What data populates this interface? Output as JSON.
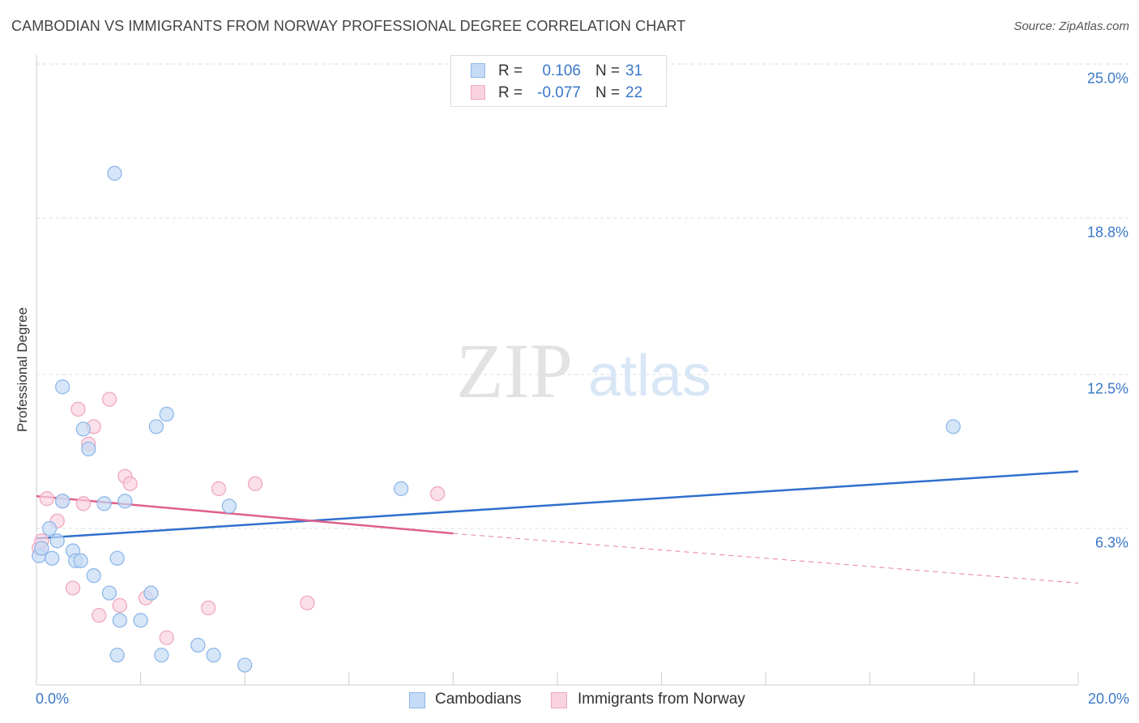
{
  "chart_data": {
    "type": "scatter",
    "title": "CAMBODIAN VS IMMIGRANTS FROM NORWAY PROFESSIONAL DEGREE CORRELATION CHART",
    "source": "Source: ZipAtlas.com",
    "ylabel": "Professional Degree",
    "xlabel": "",
    "xlim": [
      0,
      20
    ],
    "ylim": [
      0,
      25
    ],
    "x_tick_labels": [
      "0.0%",
      "20.0%"
    ],
    "y_ticks": [
      {
        "value": 25.0,
        "label": "25.0%"
      },
      {
        "value": 18.8,
        "label": "18.8%"
      },
      {
        "value": 12.5,
        "label": "12.5%"
      },
      {
        "value": 6.3,
        "label": "6.3%"
      }
    ],
    "watermark": {
      "zip": "ZIP",
      "atlas": "atlas"
    },
    "legend": [
      {
        "r_label": "R =",
        "r_value": "0.106",
        "n_label": "N =",
        "n_value": "31"
      },
      {
        "r_label": "R =",
        "r_value": "-0.077",
        "n_label": "N =",
        "n_value": "22"
      }
    ],
    "series": [
      {
        "name": "Cambodians",
        "color": "#8fb8ea",
        "fill": "#c5dbf5",
        "line_color": "#2f6fcc",
        "trend": {
          "x0": 0.0,
          "y0": 5.9,
          "x1": 20.0,
          "y1": 8.6
        },
        "points": [
          [
            0.05,
            5.2
          ],
          [
            0.1,
            5.5
          ],
          [
            0.25,
            6.3
          ],
          [
            0.3,
            5.1
          ],
          [
            0.4,
            5.8
          ],
          [
            0.5,
            7.4
          ],
          [
            0.5,
            12.0
          ],
          [
            0.7,
            5.4
          ],
          [
            0.75,
            5.0
          ],
          [
            0.85,
            5.0
          ],
          [
            0.9,
            10.3
          ],
          [
            1.0,
            9.5
          ],
          [
            1.1,
            4.4
          ],
          [
            1.3,
            7.3
          ],
          [
            1.4,
            3.7
          ],
          [
            1.5,
            20.6
          ],
          [
            1.55,
            1.2
          ],
          [
            1.55,
            5.1
          ],
          [
            1.6,
            2.6
          ],
          [
            1.7,
            7.4
          ],
          [
            2.0,
            2.6
          ],
          [
            2.2,
            3.7
          ],
          [
            2.3,
            10.4
          ],
          [
            2.4,
            1.2
          ],
          [
            2.5,
            10.9
          ],
          [
            3.1,
            1.6
          ],
          [
            3.4,
            1.2
          ],
          [
            3.7,
            7.2
          ],
          [
            4.0,
            0.8
          ],
          [
            7.0,
            7.9
          ],
          [
            17.6,
            10.4
          ]
        ]
      },
      {
        "name": "Immigrants from Norway",
        "color": "#f0a8bf",
        "fill": "#f9d3df",
        "line_color": "#e0608a",
        "trend": {
          "x0": 0.0,
          "y0": 7.6,
          "x1": 8.0,
          "y1": 6.1
        },
        "trend_dashed": {
          "x0": 8.0,
          "y0": 6.1,
          "x1": 20.0,
          "y1": 4.1
        },
        "points": [
          [
            0.05,
            5.5
          ],
          [
            0.1,
            5.8
          ],
          [
            0.2,
            7.5
          ],
          [
            0.4,
            6.6
          ],
          [
            0.5,
            7.4
          ],
          [
            0.7,
            3.9
          ],
          [
            0.8,
            11.1
          ],
          [
            0.9,
            7.3
          ],
          [
            1.0,
            9.7
          ],
          [
            1.1,
            10.4
          ],
          [
            1.2,
            2.8
          ],
          [
            1.4,
            11.5
          ],
          [
            1.6,
            3.2
          ],
          [
            1.7,
            8.4
          ],
          [
            1.8,
            8.1
          ],
          [
            2.1,
            3.5
          ],
          [
            2.5,
            1.9
          ],
          [
            3.3,
            3.1
          ],
          [
            3.5,
            7.9
          ],
          [
            4.2,
            8.1
          ],
          [
            5.2,
            3.3
          ],
          [
            7.7,
            7.7
          ]
        ]
      }
    ]
  }
}
